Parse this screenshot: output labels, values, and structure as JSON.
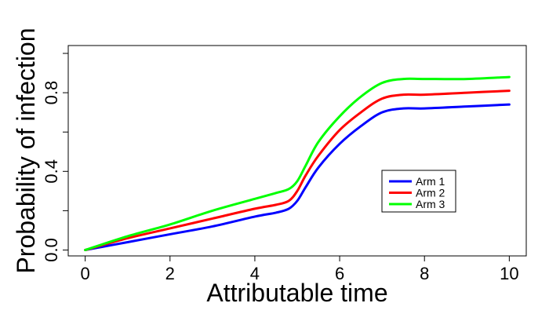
{
  "chart_data": {
    "type": "line",
    "title": "",
    "xlabel": "Attributable time",
    "ylabel": "Probability of infection",
    "xlim": [
      -0.4,
      10.4
    ],
    "ylim": [
      -0.03,
      1.04
    ],
    "xticks": [
      0,
      2,
      4,
      6,
      8,
      10
    ],
    "xtick_labels": [
      "0",
      "2",
      "4",
      "6",
      "8",
      "10"
    ],
    "yticks": [
      0.0,
      0.2,
      0.4,
      0.6,
      0.8,
      1.0
    ],
    "ytick_labels": [
      "0.0",
      "",
      "0.4",
      "",
      "0.8",
      ""
    ],
    "grid": false,
    "legend_position": "center-right",
    "series": [
      {
        "name": "Arm 1",
        "color": "#0000ff",
        "x": [
          0,
          1,
          2,
          3,
          4,
          4.5,
          4.8,
          5,
          5.2,
          5.5,
          6,
          6.5,
          7,
          7.5,
          8,
          9,
          10
        ],
        "y": [
          0.0,
          0.04,
          0.08,
          0.12,
          0.17,
          0.19,
          0.21,
          0.25,
          0.32,
          0.42,
          0.54,
          0.63,
          0.7,
          0.72,
          0.72,
          0.73,
          0.74
        ]
      },
      {
        "name": "Arm 2",
        "color": "#ff0000",
        "x": [
          0,
          1,
          2,
          3,
          4,
          4.5,
          4.8,
          5,
          5.2,
          5.5,
          6,
          6.5,
          7,
          7.5,
          8,
          9,
          10
        ],
        "y": [
          0.0,
          0.06,
          0.11,
          0.16,
          0.21,
          0.23,
          0.25,
          0.3,
          0.38,
          0.48,
          0.61,
          0.7,
          0.77,
          0.79,
          0.79,
          0.8,
          0.81
        ]
      },
      {
        "name": "Arm 3",
        "color": "#00ff00",
        "x": [
          0,
          1,
          2,
          3,
          4,
          4.5,
          4.8,
          5,
          5.2,
          5.5,
          6,
          6.5,
          7,
          7.5,
          8,
          9,
          10
        ],
        "y": [
          0.0,
          0.07,
          0.13,
          0.2,
          0.26,
          0.29,
          0.31,
          0.35,
          0.43,
          0.55,
          0.68,
          0.78,
          0.85,
          0.87,
          0.87,
          0.87,
          0.88
        ]
      }
    ]
  }
}
